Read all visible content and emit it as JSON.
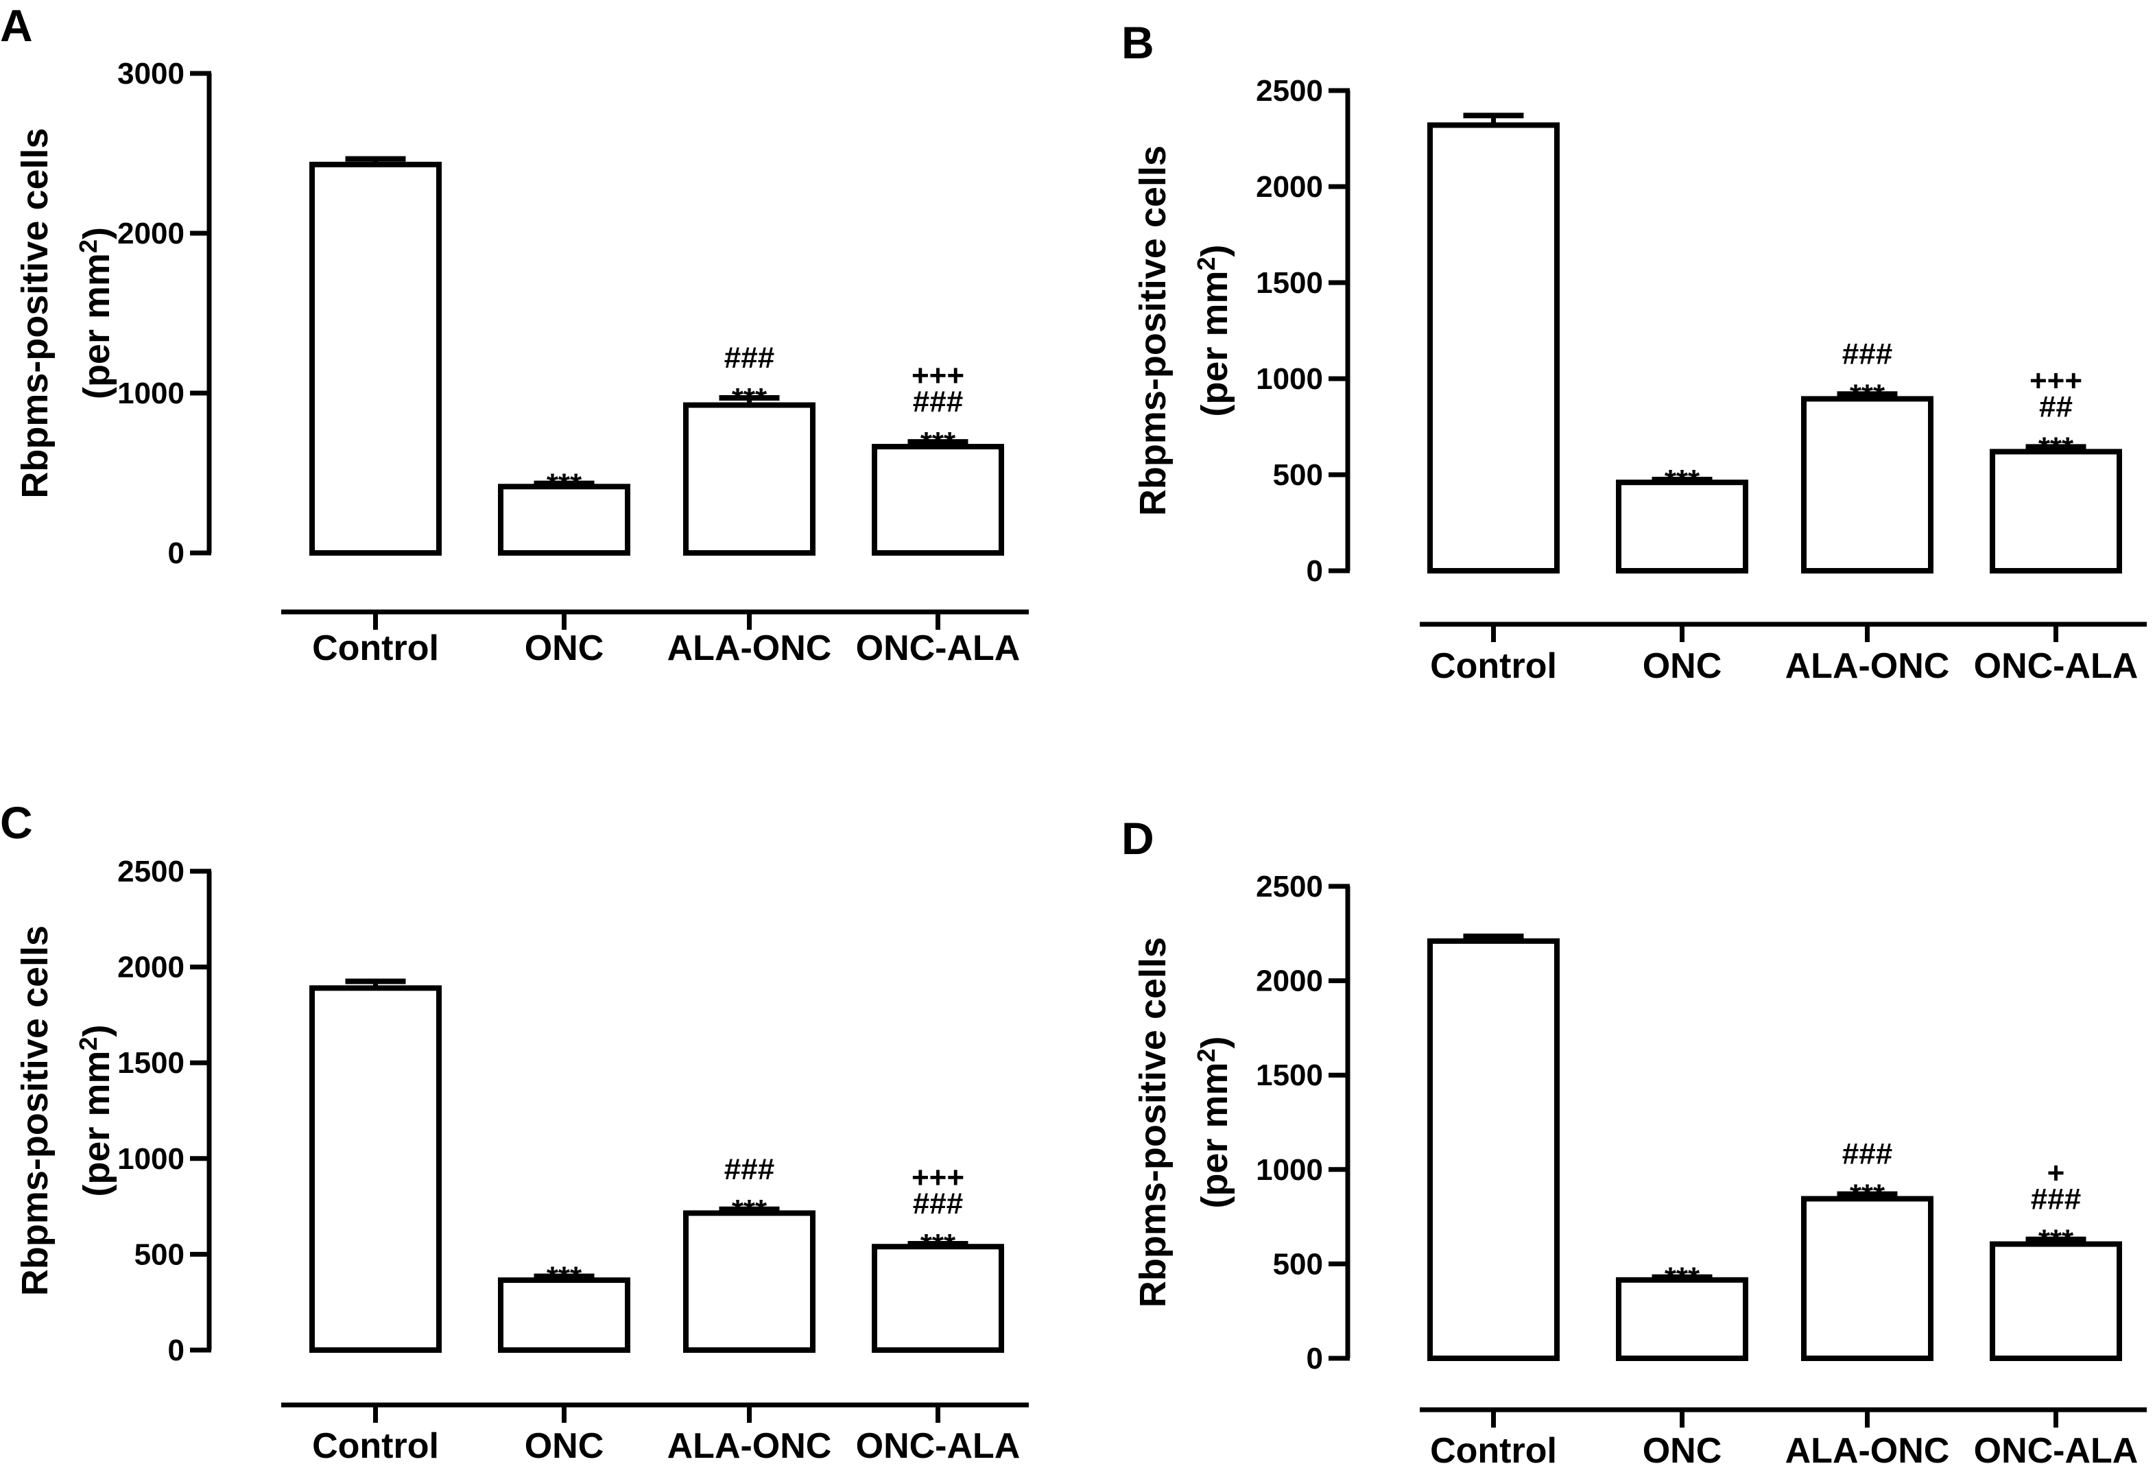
{
  "figure": {
    "panels": [
      {
        "letter": "A",
        "ylabel_main": "Rbpms-positive cells",
        "ylabel_unit": "(per mm",
        "ylabel_sup": "2",
        "ylabel_close": ")"
      },
      {
        "letter": "B",
        "ylabel_main": "Rbpms-positive cells",
        "ylabel_unit": "(per mm",
        "ylabel_sup": "2",
        "ylabel_close": ")"
      },
      {
        "letter": "C",
        "ylabel_main": "Rbpms-positive cells",
        "ylabel_unit": "(per mm",
        "ylabel_sup": "2",
        "ylabel_close": ")"
      },
      {
        "letter": "D",
        "ylabel_main": "Rbpms-positive cells",
        "ylabel_unit": "(per mm",
        "ylabel_sup": "2",
        "ylabel_close": ")"
      }
    ]
  },
  "chart_data": [
    {
      "type": "bar",
      "panel": "A",
      "categories": [
        "Control",
        "ONC",
        "ALA-ONC",
        "ONC-ALA"
      ],
      "values": [
        2430,
        415,
        925,
        665
      ],
      "errors": [
        35,
        20,
        45,
        30
      ],
      "significance": [
        [],
        [
          "***"
        ],
        [
          "###",
          "***"
        ],
        [
          "+++",
          "###",
          "***"
        ]
      ],
      "ylabel": "Rbpms-positive cells (per mm2)",
      "ylim": [
        0,
        3000
      ],
      "yticks": [
        0,
        1000,
        2000,
        3000
      ],
      "grid": false,
      "bar_fill": "#ffffff",
      "bar_stroke": "#000000"
    },
    {
      "type": "bar",
      "panel": "B",
      "categories": [
        "Control",
        "ONC",
        "ALA-ONC",
        "ONC-ALA"
      ],
      "values": [
        2320,
        460,
        895,
        620
      ],
      "errors": [
        50,
        15,
        25,
        25
      ],
      "significance": [
        [],
        [
          "***"
        ],
        [
          "###",
          "***"
        ],
        [
          "+++",
          "##",
          "***"
        ]
      ],
      "ylabel": "Rbpms-positive cells (per mm2)",
      "ylim": [
        0,
        2500
      ],
      "yticks": [
        0,
        500,
        1000,
        1500,
        2000,
        2500
      ],
      "grid": false,
      "bar_fill": "#ffffff",
      "bar_stroke": "#000000"
    },
    {
      "type": "bar",
      "panel": "C",
      "categories": [
        "Control",
        "ONC",
        "ALA-ONC",
        "ONC-ALA"
      ],
      "values": [
        1890,
        365,
        715,
        540
      ],
      "errors": [
        35,
        20,
        20,
        15
      ],
      "significance": [
        [],
        [
          "***"
        ],
        [
          "###",
          "***"
        ],
        [
          "+++",
          "###",
          "***"
        ]
      ],
      "ylabel": "Rbpms-positive cells (per mm2)",
      "ylim": [
        0,
        2500
      ],
      "yticks": [
        0,
        500,
        1000,
        1500,
        2000,
        2500
      ],
      "grid": false,
      "bar_fill": "#ffffff",
      "bar_stroke": "#000000"
    },
    {
      "type": "bar",
      "panel": "D",
      "categories": [
        "Control",
        "ONC",
        "ALA-ONC",
        "ONC-ALA"
      ],
      "values": [
        2210,
        415,
        845,
        605
      ],
      "errors": [
        25,
        15,
        25,
        25
      ],
      "significance": [
        [],
        [
          "***"
        ],
        [
          "###",
          "***"
        ],
        [
          "+",
          "###",
          "***"
        ]
      ],
      "ylabel": "Rbpms-positive cells (per mm2)",
      "ylim": [
        0,
        2500
      ],
      "yticks": [
        0,
        500,
        1000,
        1500,
        2000,
        2500
      ],
      "grid": false,
      "bar_fill": "#ffffff",
      "bar_stroke": "#000000"
    }
  ]
}
